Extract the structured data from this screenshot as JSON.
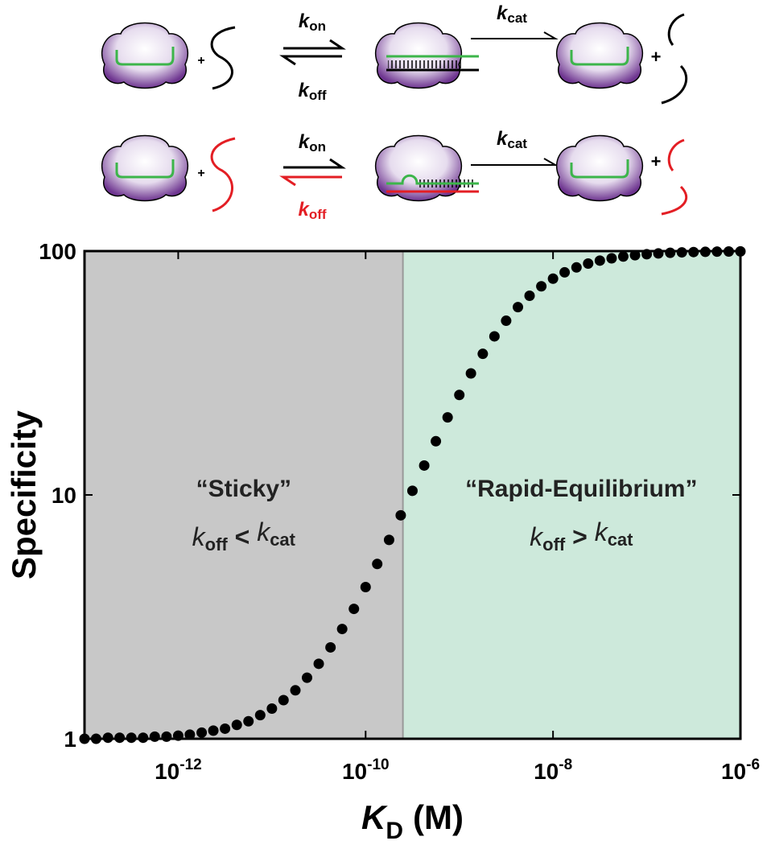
{
  "diagram": {
    "rows": [
      {
        "plus1": "+",
        "forward_k": "k",
        "forward_sub": "on",
        "reverse_k": "k",
        "reverse_sub": "off",
        "cat_k": "k",
        "cat_sub": "cat",
        "plus2": "+"
      },
      {
        "plus1": "+",
        "forward_k": "k",
        "forward_sub": "on",
        "reverse_k": "k",
        "reverse_sub": "off",
        "cat_k": "k",
        "cat_sub": "cat",
        "plus2": "+"
      }
    ]
  },
  "chart_data": {
    "type": "scatter",
    "y_label": "Specificity",
    "x_label": {
      "symbol": "K",
      "subscript": "D",
      "unit": "(M)"
    },
    "x": [
      1e-13,
      1.33e-13,
      1.78e-13,
      2.37e-13,
      3.16e-13,
      4.22e-13,
      5.62e-13,
      7.5e-13,
      1e-12,
      1.33e-12,
      1.78e-12,
      2.37e-12,
      3.16e-12,
      4.22e-12,
      5.62e-12,
      7.5e-12,
      1e-11,
      1.33e-11,
      1.78e-11,
      2.37e-11,
      3.16e-11,
      4.22e-11,
      5.62e-11,
      7.5e-11,
      1e-10,
      1.33e-10,
      1.78e-10,
      2.37e-10,
      3.16e-10,
      4.22e-10,
      5.62e-10,
      7.5e-10,
      1e-09,
      1.33e-09,
      1.78e-09,
      2.37e-09,
      3.16e-09,
      4.22e-09,
      5.62e-09,
      7.5e-09,
      1e-08,
      1.33e-08,
      1.78e-08,
      2.37e-08,
      3.16e-08,
      4.22e-08,
      5.62e-08,
      7.5e-08,
      1e-07,
      1.33e-07,
      1.78e-07,
      2.37e-07,
      3.16e-07,
      4.22e-07,
      5.62e-07,
      7.5e-07,
      1e-06
    ],
    "values": [
      1.0,
      1.0,
      1.01,
      1.01,
      1.01,
      1.01,
      1.02,
      1.02,
      1.03,
      1.04,
      1.06,
      1.08,
      1.1,
      1.14,
      1.18,
      1.25,
      1.33,
      1.44,
      1.58,
      1.78,
      2.03,
      2.37,
      2.82,
      3.41,
      4.19,
      5.21,
      6.54,
      8.25,
      10.4,
      13.2,
      16.6,
      20.8,
      25.7,
      31.5,
      37.9,
      44.7,
      51.8,
      58.9,
      65.6,
      71.7,
      77.1,
      81.8,
      85.7,
      88.9,
      91.4,
      93.4,
      95.0,
      96.2,
      97.1,
      97.8,
      98.4,
      98.8,
      99.1,
      99.3,
      99.5,
      99.6,
      99.7
    ],
    "color": "#000000",
    "xlim": [
      1e-13,
      1e-06
    ],
    "ylim": [
      1,
      100
    ],
    "xticks": [
      {
        "value": 1e-12,
        "label": "10-12"
      },
      {
        "value": 1e-10,
        "label": "10-10"
      },
      {
        "value": 1e-08,
        "label": "10-8"
      },
      {
        "value": 1e-06,
        "label": "10-6"
      }
    ],
    "yticks": [
      1,
      10,
      100
    ],
    "x_log": true,
    "y_log": true,
    "regions": [
      {
        "from": 1e-13,
        "to": 2.5e-10,
        "color": "#c8c8c8"
      },
      {
        "from": 2.5e-10,
        "to": 1e-06,
        "color": "#cde9db"
      }
    ],
    "annotations": [
      {
        "title": "“Sticky”",
        "k1": "k",
        "sub1": "off",
        "op": "<",
        "k2": "k",
        "sub2": "cat"
      },
      {
        "title": "“Rapid-Equilibrium”",
        "k1": "k",
        "sub1": "off",
        "op": ">",
        "k2": "k",
        "sub2": "cat"
      }
    ]
  }
}
